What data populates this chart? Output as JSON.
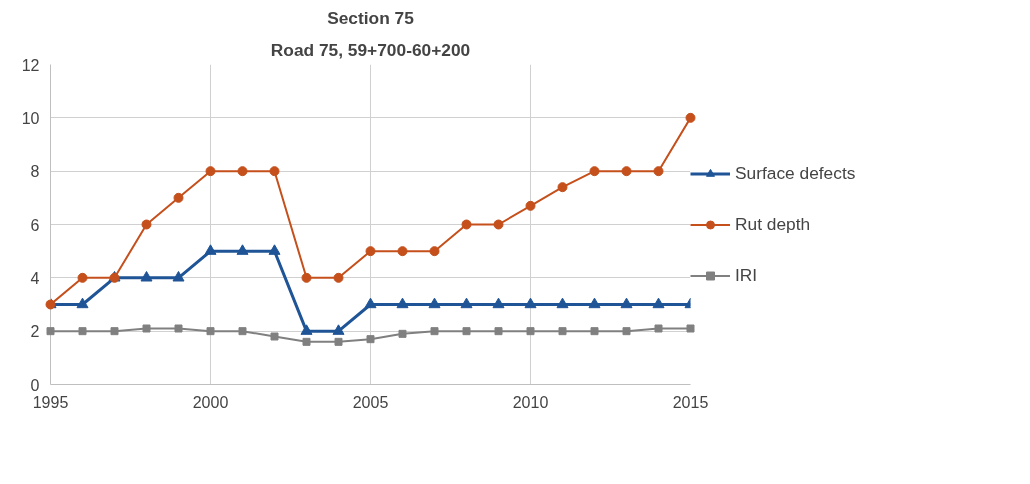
{
  "chart_data": {
    "type": "line",
    "title": "Section 75",
    "subtitle": "Road 75, 59+700-60+200",
    "x": [
      1995,
      1996,
      1997,
      1998,
      1999,
      2000,
      2001,
      2002,
      2003,
      2004,
      2005,
      2006,
      2007,
      2008,
      2009,
      2010,
      2011,
      2012,
      2013,
      2014,
      2015
    ],
    "series": [
      {
        "name": "Surface defects",
        "color": "#1f5597",
        "marker": "triangle",
        "values": [
          3,
          3,
          4,
          4,
          4,
          5,
          5,
          5,
          2,
          2,
          3,
          3,
          3,
          3,
          3,
          3,
          3,
          3,
          3,
          3,
          3
        ]
      },
      {
        "name": "Rut depth",
        "color": "#c5501c",
        "marker": "circle",
        "values": [
          3,
          4,
          4,
          6,
          7,
          8,
          8,
          8,
          4,
          4,
          5,
          5,
          5,
          6,
          6,
          6.7,
          7.4,
          8,
          8,
          8,
          10
        ]
      },
      {
        "name": "IRI",
        "color": "#808080",
        "marker": "square",
        "values": [
          2,
          2,
          2,
          2.1,
          2.1,
          2,
          2,
          1.8,
          1.6,
          1.6,
          1.7,
          1.9,
          2,
          2,
          2,
          2,
          2,
          2,
          2,
          2.1,
          2.1
        ]
      }
    ],
    "xlim": [
      1995,
      2015
    ],
    "xticks": [
      1995,
      2000,
      2005,
      2010,
      2015
    ],
    "ylim": [
      0,
      12
    ],
    "yticks": [
      0,
      2,
      4,
      6,
      8,
      10,
      12
    ],
    "grid": true,
    "legend": "right",
    "line_style": "solid"
  }
}
